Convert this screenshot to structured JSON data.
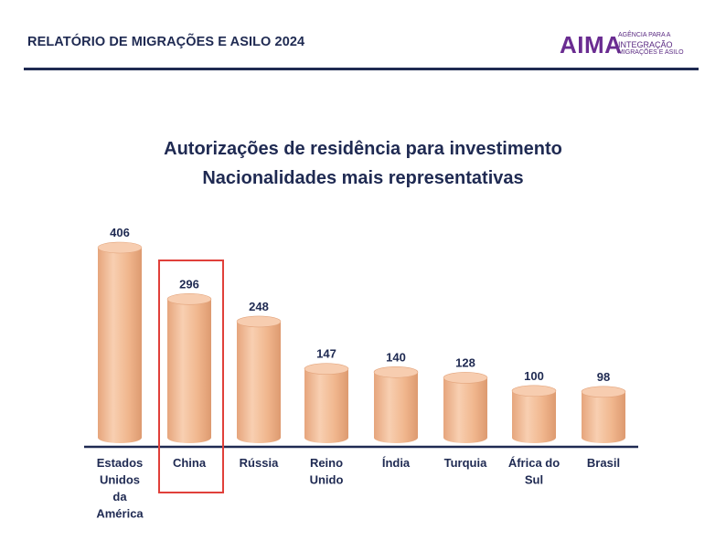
{
  "header": {
    "report_title": "RELATÓRIO DE MIGRAÇÕES E ASILO 2024",
    "logo": {
      "wordmark": "AIMA",
      "tagline_line1": "AGÊNCIA PARA A",
      "tagline_line2": "INTEGRAÇÃO",
      "tagline_line3": "MIGRAÇÕES E ASILO"
    }
  },
  "colors": {
    "bar_fill": "#f2b990",
    "bar_top": "#f7cdb0",
    "text": "#1f2a52",
    "highlight": "#e0403a",
    "brand": "#6a2c91"
  },
  "chart_data": {
    "type": "bar",
    "title_line1": "Autorizações de residência para investimento",
    "title_line2": "Nacionalidades mais representativas",
    "categories": [
      [
        "Estados",
        "Unidos",
        "da",
        "América"
      ],
      [
        "China"
      ],
      [
        "Rússia"
      ],
      [
        "Reino",
        "Unido"
      ],
      [
        "Índia"
      ],
      [
        "Turquia"
      ],
      [
        "África do",
        "Sul"
      ],
      [
        "Brasil"
      ]
    ],
    "values": [
      406,
      296,
      248,
      147,
      140,
      128,
      100,
      98
    ],
    "highlighted_category": "China",
    "ylim": [
      0,
      406
    ]
  }
}
